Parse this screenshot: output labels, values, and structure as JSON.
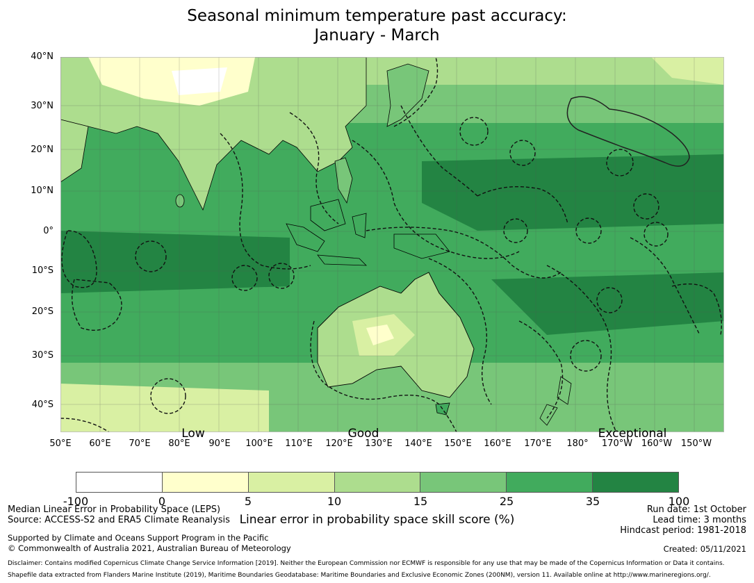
{
  "title": {
    "line1": "Seasonal minimum temperature past accuracy:",
    "line2": "January - March"
  },
  "map": {
    "lat_labels": [
      "40°N",
      "30°N",
      "20°N",
      "10°N",
      "0°",
      "10°S",
      "20°S",
      "30°S",
      "40°S"
    ],
    "lon_labels": [
      "50°E",
      "60°E",
      "70°E",
      "80°E",
      "90°E",
      "100°E",
      "110°E",
      "120°E",
      "130°E",
      "140°E",
      "150°E",
      "160°E",
      "170°E",
      "180°",
      "170°W",
      "160°W",
      "150°W"
    ],
    "category_labels": [
      "Low",
      "Good",
      "Exceptional"
    ],
    "colors": {
      "ocean_base": "#41ab5d",
      "land_base": "#addd8e",
      "coast": "#000000",
      "eez_line": "#111111"
    }
  },
  "colorbar": {
    "ticks": [
      "-100",
      "0",
      "5",
      "10",
      "15",
      "25",
      "35",
      "100"
    ],
    "colors": [
      "#ffffff",
      "#ffffcc",
      "#d9f0a3",
      "#addd8e",
      "#78c679",
      "#41ab5d",
      "#238443"
    ],
    "label": "Linear error in probability space skill score (%)"
  },
  "footer": {
    "left1": "Median Linear Error in Probability Space (LEPS)",
    "left2": "Source: ACCESS-S2 and ERA5 Climate Reanalysis",
    "left3": "Supported by Climate and Oceans Support Program in the Pacific",
    "left4": "© Commonwealth of Australia 2021, Australian Bureau of Meteorology",
    "right1": "Run date: 1st October",
    "right2": "Lead time: 3 months",
    "right3": "Hindcast period: 1981-2018",
    "created": "Created: 05/11/2021",
    "disclaimer": "Disclaimer: Contains modified Copernicus Climate Change Service Information [2019]. Neither the European Commission nor ECMWF is responsible for any use that may be made of the Copernicus Information or Data it contains.",
    "shapefile": "Shapefile data extracted from Flanders Marine Institute (2019), Maritime Boundaries Geodatabase: Maritime Boundaries and Exclusive Economic Zones (200NM), version 11. Available online at http://www.marineregions.org/."
  }
}
